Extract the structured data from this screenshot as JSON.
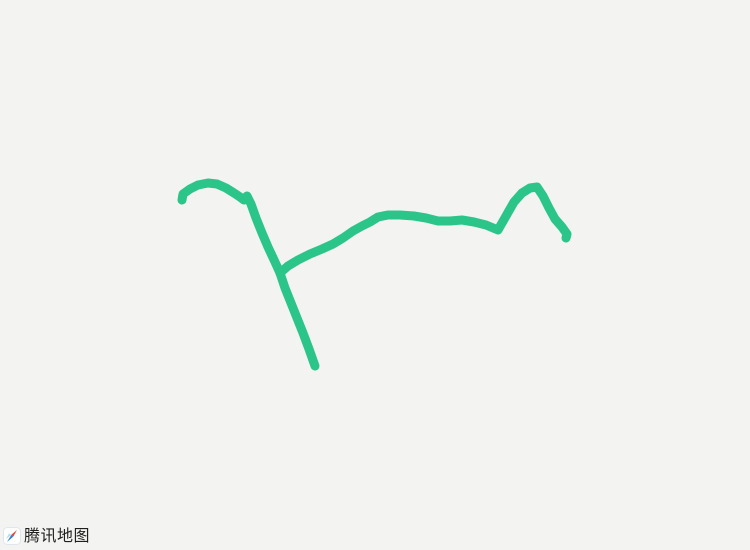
{
  "map": {
    "background_color": "#f3f3f1",
    "route_color": "#2bc58a"
  },
  "attribution": {
    "brand": "腾讯地图",
    "logo_icon": "tencent-map-compass-logo-icon"
  }
}
